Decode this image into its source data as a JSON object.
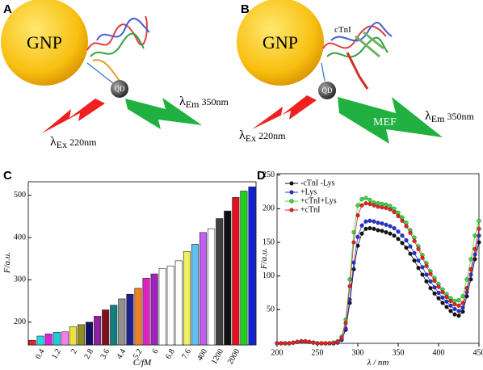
{
  "diagrams": [
    {
      "label": "A",
      "gnp": "GNP",
      "qd": "QD",
      "excitation": {
        "symbol": "λ",
        "sub": "Ex",
        "value": "220nm"
      },
      "emission": {
        "symbol": "λ",
        "sub": "Em",
        "value": "350nm"
      }
    },
    {
      "label": "B",
      "gnp": "GNP",
      "qd": "QD",
      "target": "cTnI",
      "mef": "MEF",
      "excitation": {
        "symbol": "λ",
        "sub": "Ex",
        "value": "220nm"
      },
      "emission": {
        "symbol": "λ",
        "sub": "Em",
        "value": "350nm"
      }
    }
  ],
  "chart_data": [
    {
      "type": "bar",
      "panel_label": "C",
      "x_label": "C/fM",
      "y_label": "F/a.u.",
      "categories": [
        null,
        "0.4",
        null,
        "1.2",
        null,
        "2",
        null,
        "2.8",
        null,
        "3.6",
        null,
        "4.4",
        null,
        "5.2",
        null,
        "6",
        null,
        "6.8",
        null,
        "7.6",
        null,
        "400",
        null,
        "1200",
        null,
        "2000",
        null,
        null
      ],
      "values": [
        157,
        167,
        172,
        176,
        177,
        189,
        194,
        200,
        214,
        229,
        240,
        255,
        266,
        280,
        304,
        314,
        327,
        333,
        345,
        367,
        384,
        412,
        421,
        445,
        463,
        495,
        510,
        520
      ],
      "colors": [
        "#e8202a",
        "#20d8e8",
        "#e020e0",
        "#20c8e0",
        "#f080f0",
        "#f0e040",
        "#909020",
        "#101060",
        "#9020a0",
        "#801020",
        "#108080",
        "#909090",
        "#202090",
        "#f08020",
        "#e020c0",
        "#a020c0",
        "#ffffff",
        "#ffffff",
        "#ffffff",
        "#f0f060",
        "#60c0f0",
        "#c060f0",
        "#ffffff",
        "#404040",
        "#101010",
        "#e81020",
        "#20d020",
        "#1020e0"
      ],
      "ylim": [
        146,
        532
      ],
      "yticks": [
        200,
        300,
        400,
        500
      ],
      "grid": false
    },
    {
      "type": "line",
      "panel_label": "D",
      "x_label": "λ / nm",
      "y_label": "F/a.u.",
      "x": [
        200,
        205,
        210,
        215,
        220,
        225,
        230,
        235,
        240,
        245,
        250,
        255,
        260,
        265,
        270,
        275,
        280,
        285,
        290,
        295,
        300,
        305,
        310,
        315,
        320,
        325,
        330,
        335,
        340,
        345,
        350,
        355,
        360,
        365,
        370,
        375,
        380,
        385,
        390,
        395,
        400,
        405,
        410,
        415,
        420,
        425,
        430,
        435,
        440,
        445,
        450
      ],
      "series": [
        {
          "name": "-cTnI -Lys",
          "color": "#111111",
          "values": [
            0,
            0,
            0,
            0,
            1,
            2,
            3,
            3,
            2,
            1,
            0,
            0,
            0,
            0,
            0,
            1,
            5,
            20,
            60,
            110,
            145,
            163,
            170,
            171,
            170,
            168,
            167,
            165,
            163,
            160,
            155,
            149,
            142,
            133,
            123,
            112,
            102,
            92,
            82,
            74,
            67,
            60,
            54,
            48,
            43,
            41,
            47,
            70,
            95,
            125,
            150
          ]
        },
        {
          "name": "+Lys",
          "color": "#2030e0",
          "values": [
            0,
            0,
            0,
            0,
            1,
            2,
            3,
            3,
            2,
            1,
            0,
            0,
            0,
            0,
            0,
            1,
            5,
            22,
            65,
            120,
            158,
            175,
            181,
            182,
            181,
            179,
            178,
            176,
            174,
            171,
            166,
            160,
            153,
            144,
            134,
            123,
            113,
            102,
            92,
            83,
            75,
            68,
            62,
            56,
            51,
            48,
            53,
            76,
            102,
            132,
            160
          ]
        },
        {
          "name": "+cTnI+Lys",
          "color": "#30e030",
          "values": [
            0,
            0,
            0,
            0,
            1,
            2,
            3,
            3,
            2,
            1,
            0,
            0,
            0,
            0,
            1,
            3,
            10,
            35,
            95,
            165,
            205,
            214,
            216,
            213,
            209,
            208,
            207,
            206,
            204,
            200,
            194,
            187,
            179,
            168,
            157,
            144,
            131,
            119,
            107,
            97,
            88,
            80,
            73,
            67,
            63,
            64,
            70,
            95,
            125,
            160,
            182
          ]
        },
        {
          "name": "+cTnI",
          "color": "#e82020",
          "values": [
            0,
            0,
            0,
            0,
            1,
            2,
            3,
            3,
            2,
            1,
            0,
            0,
            0,
            0,
            1,
            2,
            8,
            30,
            85,
            150,
            190,
            205,
            208,
            207,
            205,
            203,
            202,
            201,
            199,
            195,
            189,
            182,
            174,
            164,
            152,
            140,
            127,
            115,
            103,
            93,
            84,
            76,
            69,
            63,
            58,
            56,
            60,
            82,
            110,
            140,
            170
          ]
        }
      ],
      "xlim": [
        200,
        450
      ],
      "xticks": [
        200,
        250,
        300,
        350,
        400,
        450
      ],
      "ylim": [
        0,
        252
      ],
      "yticks": [
        50,
        100,
        150,
        200,
        250
      ],
      "legend": "upper-left"
    }
  ]
}
